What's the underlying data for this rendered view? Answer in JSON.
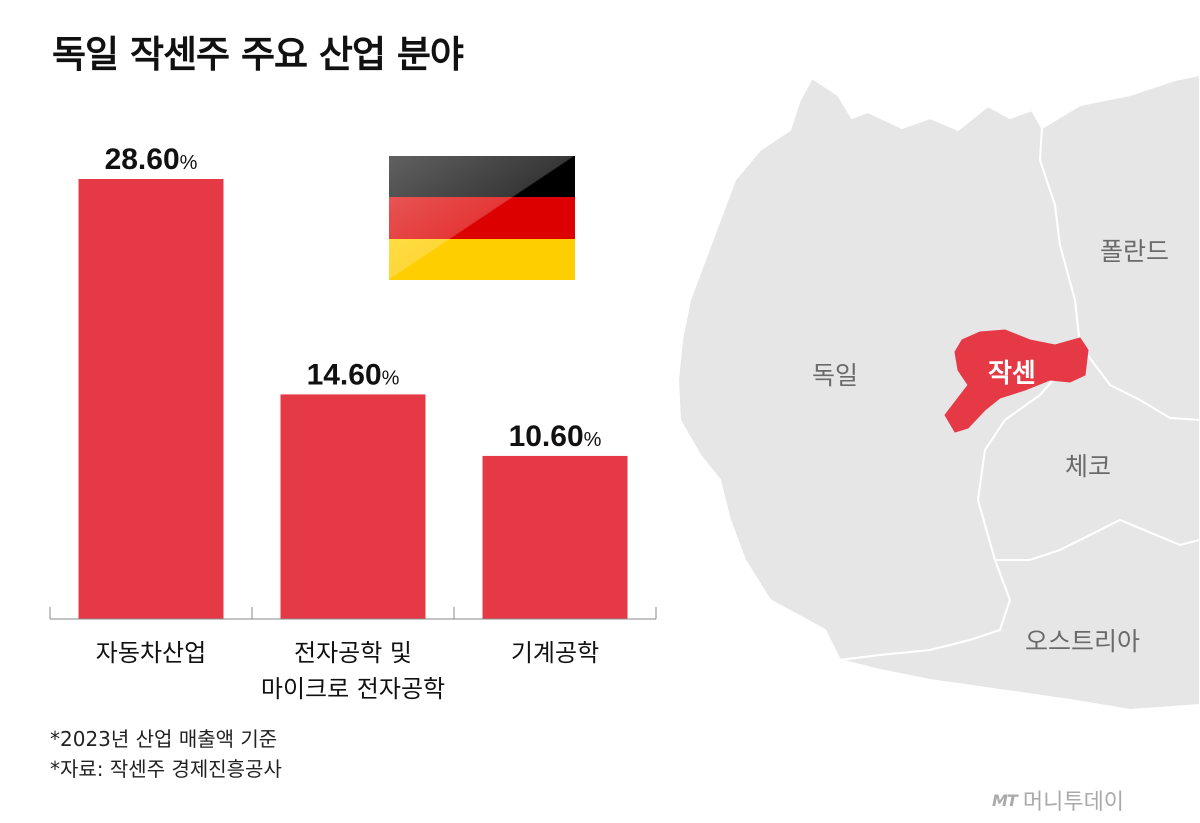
{
  "title": "독일 작센주 주요 산업 분야",
  "chart_data": {
    "type": "bar",
    "title": "독일 작센주 주요 산업 분야",
    "categories": [
      [
        "자동차산업"
      ],
      [
        "전자공학 및",
        "마이크로 전자공학"
      ],
      [
        "기계공학"
      ]
    ],
    "values": [
      28.6,
      14.6,
      10.6
    ],
    "value_labels": [
      "28.60",
      "14.60",
      "10.60"
    ],
    "unit": "%",
    "ylim": [
      0,
      32.5
    ],
    "color": "#e63946",
    "grid": false
  },
  "map": {
    "labels": {
      "germany": "독일",
      "poland": "폴란드",
      "czech": "체코",
      "austria": "오스트리아",
      "saxony": "작센"
    },
    "colors": {
      "land": "#e6e6e7",
      "border": "#ffffff",
      "saxony": "#e63946"
    }
  },
  "flag": {
    "colors": [
      "#000000",
      "#dd0000",
      "#ffce00"
    ]
  },
  "notes": [
    "*2023년 산업 매출액 기준",
    "*자료: 작센주 경제진흥공사"
  ],
  "logo": {
    "mark": "MT",
    "text": "머니투데이"
  }
}
